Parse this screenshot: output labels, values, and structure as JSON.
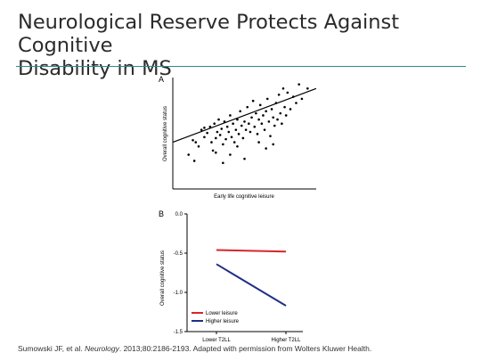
{
  "slide": {
    "title_line1": "Neurological Reserve Protects Against Cognitive",
    "title_line2": "Disability in MS",
    "accent_color": "#2e8b8b"
  },
  "citation": {
    "authors": "Sumowski JF, et al. ",
    "journal": "Neurology",
    "details": ". 2013;80:2186-2193.  Adapted with permission from Wolters Kluwer Health."
  },
  "chart_data": [
    {
      "type": "scatter",
      "panel_label": "A",
      "xlabel": "Early life cognitive leisure",
      "ylabel": "Overall cognitive status",
      "grid": false,
      "xlim": [
        0,
        100
      ],
      "ylim": [
        0,
        100
      ],
      "points": [
        [
          14,
          42
        ],
        [
          11,
          28
        ],
        [
          16,
          40
        ],
        [
          18,
          36
        ],
        [
          20,
          52
        ],
        [
          22,
          45
        ],
        [
          24,
          49
        ],
        [
          26,
          55
        ],
        [
          27,
          40
        ],
        [
          28,
          32
        ],
        [
          29,
          58
        ],
        [
          30,
          44
        ],
        [
          31,
          50
        ],
        [
          32,
          62
        ],
        [
          33,
          47
        ],
        [
          34,
          53
        ],
        [
          35,
          38
        ],
        [
          36,
          60
        ],
        [
          37,
          43
        ],
        [
          38,
          55
        ],
        [
          39,
          50
        ],
        [
          40,
          66
        ],
        [
          41,
          45
        ],
        [
          42,
          58
        ],
        [
          43,
          40
        ],
        [
          44,
          52
        ],
        [
          45,
          62
        ],
        [
          46,
          48
        ],
        [
          47,
          70
        ],
        [
          48,
          56
        ],
        [
          49,
          44
        ],
        [
          50,
          60
        ],
        [
          51,
          52
        ],
        [
          52,
          74
        ],
        [
          53,
          58
        ],
        [
          54,
          50
        ],
        [
          55,
          64
        ],
        [
          56,
          80
        ],
        [
          57,
          55
        ],
        [
          58,
          68
        ],
        [
          59,
          48
        ],
        [
          60,
          62
        ],
        [
          61,
          76
        ],
        [
          62,
          58
        ],
        [
          63,
          66
        ],
        [
          64,
          52
        ],
        [
          65,
          70
        ],
        [
          66,
          82
        ],
        [
          67,
          60
        ],
        [
          68,
          46
        ],
        [
          69,
          72
        ],
        [
          70,
          64
        ],
        [
          71,
          56
        ],
        [
          72,
          78
        ],
        [
          73,
          62
        ],
        [
          74,
          86
        ],
        [
          75,
          68
        ],
        [
          76,
          58
        ],
        [
          77,
          92
        ],
        [
          78,
          74
        ],
        [
          79,
          66
        ],
        [
          80,
          88
        ],
        [
          82,
          72
        ],
        [
          84,
          84
        ],
        [
          86,
          78
        ],
        [
          88,
          96
        ],
        [
          90,
          82
        ],
        [
          94,
          92
        ],
        [
          22,
          54
        ],
        [
          30,
          30
        ],
        [
          45,
          36
        ],
        [
          60,
          40
        ],
        [
          35,
          20
        ],
        [
          50,
          24
        ],
        [
          65,
          34
        ],
        [
          15,
          22
        ],
        [
          40,
          28
        ],
        [
          70,
          38
        ]
      ],
      "regression": {
        "x": [
          0,
          100
        ],
        "y": [
          40,
          92
        ]
      }
    },
    {
      "type": "line",
      "panel_label": "B",
      "xlabel": "",
      "ylabel": "Overall cognitive status",
      "categories": [
        "Lower T2LL",
        "Higher T2LL"
      ],
      "y_ticks": [
        "0.0",
        "-0.5",
        "-1.0",
        "-1.5"
      ],
      "ylim": [
        -1.5,
        0.0
      ],
      "grid": false,
      "legend_position": "bottom-left",
      "series": [
        {
          "name": "Lower leisure",
          "values": [
            -0.46,
            -0.48
          ],
          "color": "#d7262a"
        },
        {
          "name": "Higher leisure",
          "values": [
            -0.64,
            -1.17
          ],
          "color": "#1f2f86"
        }
      ]
    }
  ]
}
